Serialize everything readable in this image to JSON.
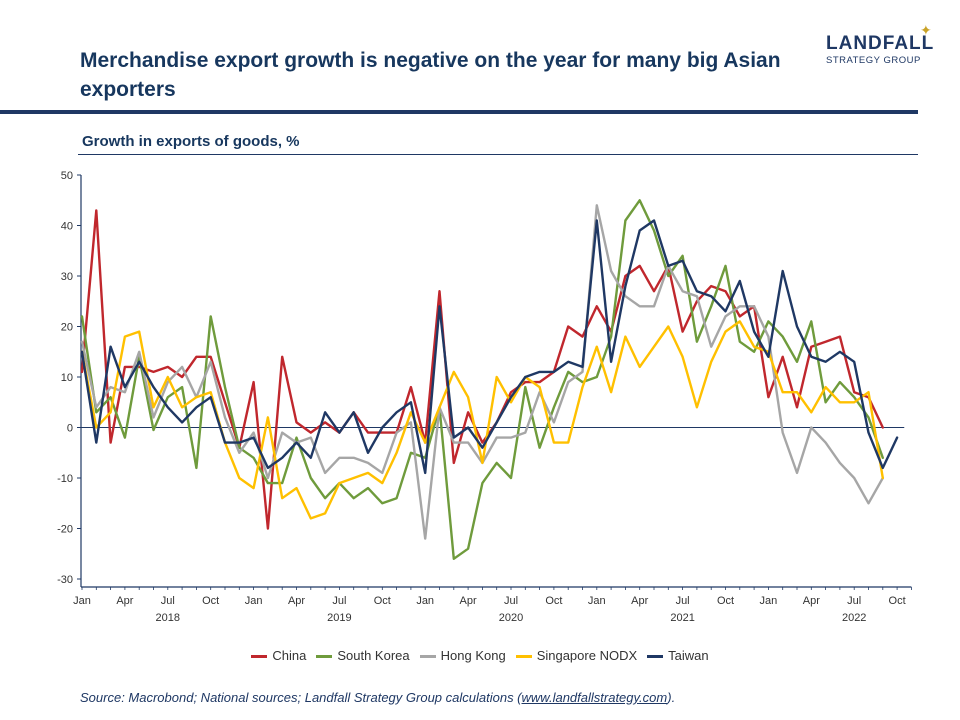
{
  "header": {
    "title": "Merchandise export growth is negative on the year for many big Asian exporters",
    "logo_main": "LANDFALL",
    "logo_sub": "STRATEGY GROUP"
  },
  "source": {
    "prefix": "Source: Macrobond; National sources; Landfall Strategy Group calculations (",
    "link": "www.landfallstrategy.com",
    "suffix": ")."
  },
  "colors": {
    "China": "#c0272d",
    "South Korea": "#6f9b3c",
    "Hong Kong": "#a6a6a6",
    "Singapore NODX": "#ffc000",
    "Taiwan": "#1f3864",
    "axis": "#1f3864",
    "text": "#17375e"
  },
  "chart_data": {
    "type": "line",
    "title": "Growth in exports of goods, %",
    "xlabel": "",
    "ylabel": "",
    "ylim": [
      -30,
      50
    ],
    "yticks": [
      -30,
      -20,
      -10,
      0,
      10,
      20,
      30,
      40,
      50
    ],
    "x_tick_labels": [
      "Jan",
      "Apr",
      "Jul",
      "Oct",
      "Jan",
      "Apr",
      "Jul",
      "Oct",
      "Jan",
      "Apr",
      "Jul",
      "Oct",
      "Jan",
      "Apr",
      "Jul",
      "Oct",
      "Jan",
      "Apr",
      "Jul",
      "Oct"
    ],
    "year_labels": [
      "2018",
      "2019",
      "2020",
      "2021",
      "2022"
    ],
    "x_start": "2018-01",
    "x_end": "2022-11",
    "legend": [
      "China",
      "South Korea",
      "Hong Kong",
      "Singapore NODX",
      "Taiwan"
    ],
    "series": [
      {
        "name": "China",
        "values": [
          11,
          43,
          -3,
          12,
          12,
          11,
          12,
          10,
          14,
          14,
          5,
          -4,
          9,
          -20,
          14,
          1,
          -1,
          1,
          -1,
          3,
          -1,
          -1,
          -1,
          8,
          -3,
          27,
          -7,
          3,
          -3,
          1,
          7,
          9,
          9,
          11,
          20,
          18,
          24,
          19,
          30,
          32,
          27,
          32,
          19,
          25,
          28,
          27,
          22,
          24,
          6,
          14,
          4,
          16,
          17,
          18,
          7,
          6,
          0
        ]
      },
      {
        "name": "South Korea",
        "values": [
          22,
          3,
          6,
          -2,
          14,
          -0.5,
          6,
          8,
          -8,
          22,
          8,
          -4,
          -6,
          -11,
          -11,
          -2,
          -10,
          -14,
          -11,
          -14,
          -12,
          -15,
          -14,
          -5,
          -6,
          4,
          -26,
          -24,
          -11,
          -7,
          -10,
          8,
          -4,
          4,
          11,
          9,
          10,
          18,
          41,
          45,
          39,
          30,
          34,
          17,
          24,
          32,
          17,
          15,
          21,
          18,
          13,
          21,
          5,
          9,
          6,
          2,
          -6
        ]
      },
      {
        "name": "Hong Kong",
        "values": [
          17,
          4,
          8,
          7,
          15,
          2,
          9,
          12,
          6,
          13,
          2,
          -5,
          -1,
          -10,
          -1,
          -3,
          -2,
          -9,
          -6,
          -6,
          -7,
          -9,
          -1,
          1,
          -22,
          4,
          -3,
          -3,
          -7,
          -2,
          -2,
          -1,
          7,
          1,
          9,
          11,
          44,
          31,
          26,
          24,
          24,
          32,
          27,
          26,
          16,
          22,
          24,
          24,
          18,
          -1,
          -9,
          0,
          -3,
          -7,
          -10,
          -15,
          -10
        ]
      },
      {
        "name": "Singapore NODX",
        "values": [
          15,
          0,
          3,
          18,
          19,
          4,
          10,
          4,
          6,
          7,
          -3,
          -10,
          -12,
          2,
          -14,
          -12,
          -18,
          -17,
          -11,
          -10,
          -9,
          -11,
          -5,
          3,
          -3,
          4,
          11,
          6,
          -7,
          10,
          5,
          10,
          8,
          -3,
          -3,
          8,
          16,
          7,
          18,
          12,
          16,
          20,
          14,
          4,
          13,
          19,
          21,
          16,
          15,
          7,
          7,
          3,
          8,
          5,
          5,
          7,
          -10
        ]
      },
      {
        "name": "Taiwan",
        "values": [
          15,
          -3,
          16,
          8,
          13,
          8,
          4,
          1,
          4,
          6,
          -3,
          -3,
          -2,
          -8,
          -6,
          -3,
          -6,
          3,
          -1,
          3,
          -5,
          0,
          3,
          5,
          -9,
          24,
          -2,
          0,
          -4,
          1,
          6,
          10,
          11,
          11,
          13,
          12,
          41,
          13,
          28,
          39,
          41,
          32,
          33,
          27,
          26,
          23,
          29,
          19,
          14,
          31,
          20,
          14,
          13,
          15,
          13,
          -1,
          -8,
          -2
        ]
      }
    ]
  }
}
